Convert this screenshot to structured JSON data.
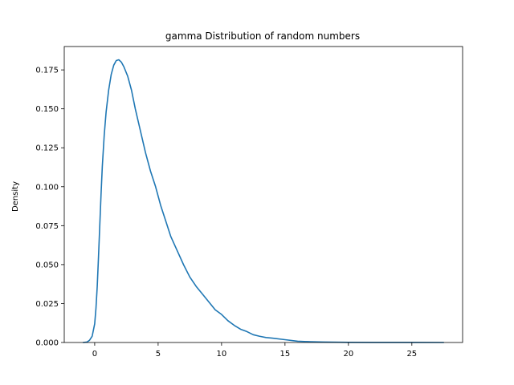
{
  "chart_data": {
    "type": "line",
    "title": "gamma Distribution of random numbers",
    "xlabel": "",
    "ylabel": "Density",
    "xlim": [
      -2.4,
      29.0
    ],
    "ylim": [
      0.0,
      0.19
    ],
    "grid": false,
    "xticks": [
      0,
      5,
      10,
      15,
      20,
      25
    ],
    "yticks": [
      0.0,
      0.025,
      0.05,
      0.075,
      0.1,
      0.125,
      0.15,
      0.175
    ],
    "ytick_labels": [
      "0.000",
      "0.025",
      "0.050",
      "0.075",
      "0.100",
      "0.125",
      "0.150",
      "0.175"
    ],
    "series": [
      {
        "name": "",
        "color": "#1f77b4",
        "x": [
          -0.9,
          -0.6,
          -0.4,
          -0.2,
          0.0,
          0.1,
          0.2,
          0.3,
          0.4,
          0.5,
          0.6,
          0.75,
          0.9,
          1.1,
          1.3,
          1.5,
          1.7,
          1.9,
          2.1,
          2.3,
          2.6,
          2.9,
          3.2,
          3.6,
          4.0,
          4.4,
          4.8,
          5.2,
          5.6,
          6.0,
          6.5,
          7.0,
          7.5,
          8.0,
          8.5,
          9.0,
          9.5,
          10.0,
          10.5,
          11.0,
          11.5,
          12.0,
          12.5,
          13.0,
          13.5,
          14.0,
          15.0,
          16.0,
          17.0,
          18.0,
          20.0,
          22.0,
          25.0,
          27.5
        ],
        "y": [
          0.0,
          0.0003,
          0.0015,
          0.004,
          0.012,
          0.022,
          0.036,
          0.055,
          0.075,
          0.095,
          0.113,
          0.133,
          0.148,
          0.162,
          0.172,
          0.178,
          0.181,
          0.1815,
          0.18,
          0.177,
          0.171,
          0.162,
          0.15,
          0.136,
          0.122,
          0.11,
          0.1,
          0.088,
          0.078,
          0.068,
          0.059,
          0.05,
          0.042,
          0.036,
          0.031,
          0.026,
          0.021,
          0.018,
          0.014,
          0.011,
          0.0085,
          0.007,
          0.005,
          0.004,
          0.0032,
          0.0028,
          0.0018,
          0.0008,
          0.0005,
          0.0003,
          0.0001,
          5e-05,
          2e-05,
          0.0
        ]
      }
    ]
  }
}
